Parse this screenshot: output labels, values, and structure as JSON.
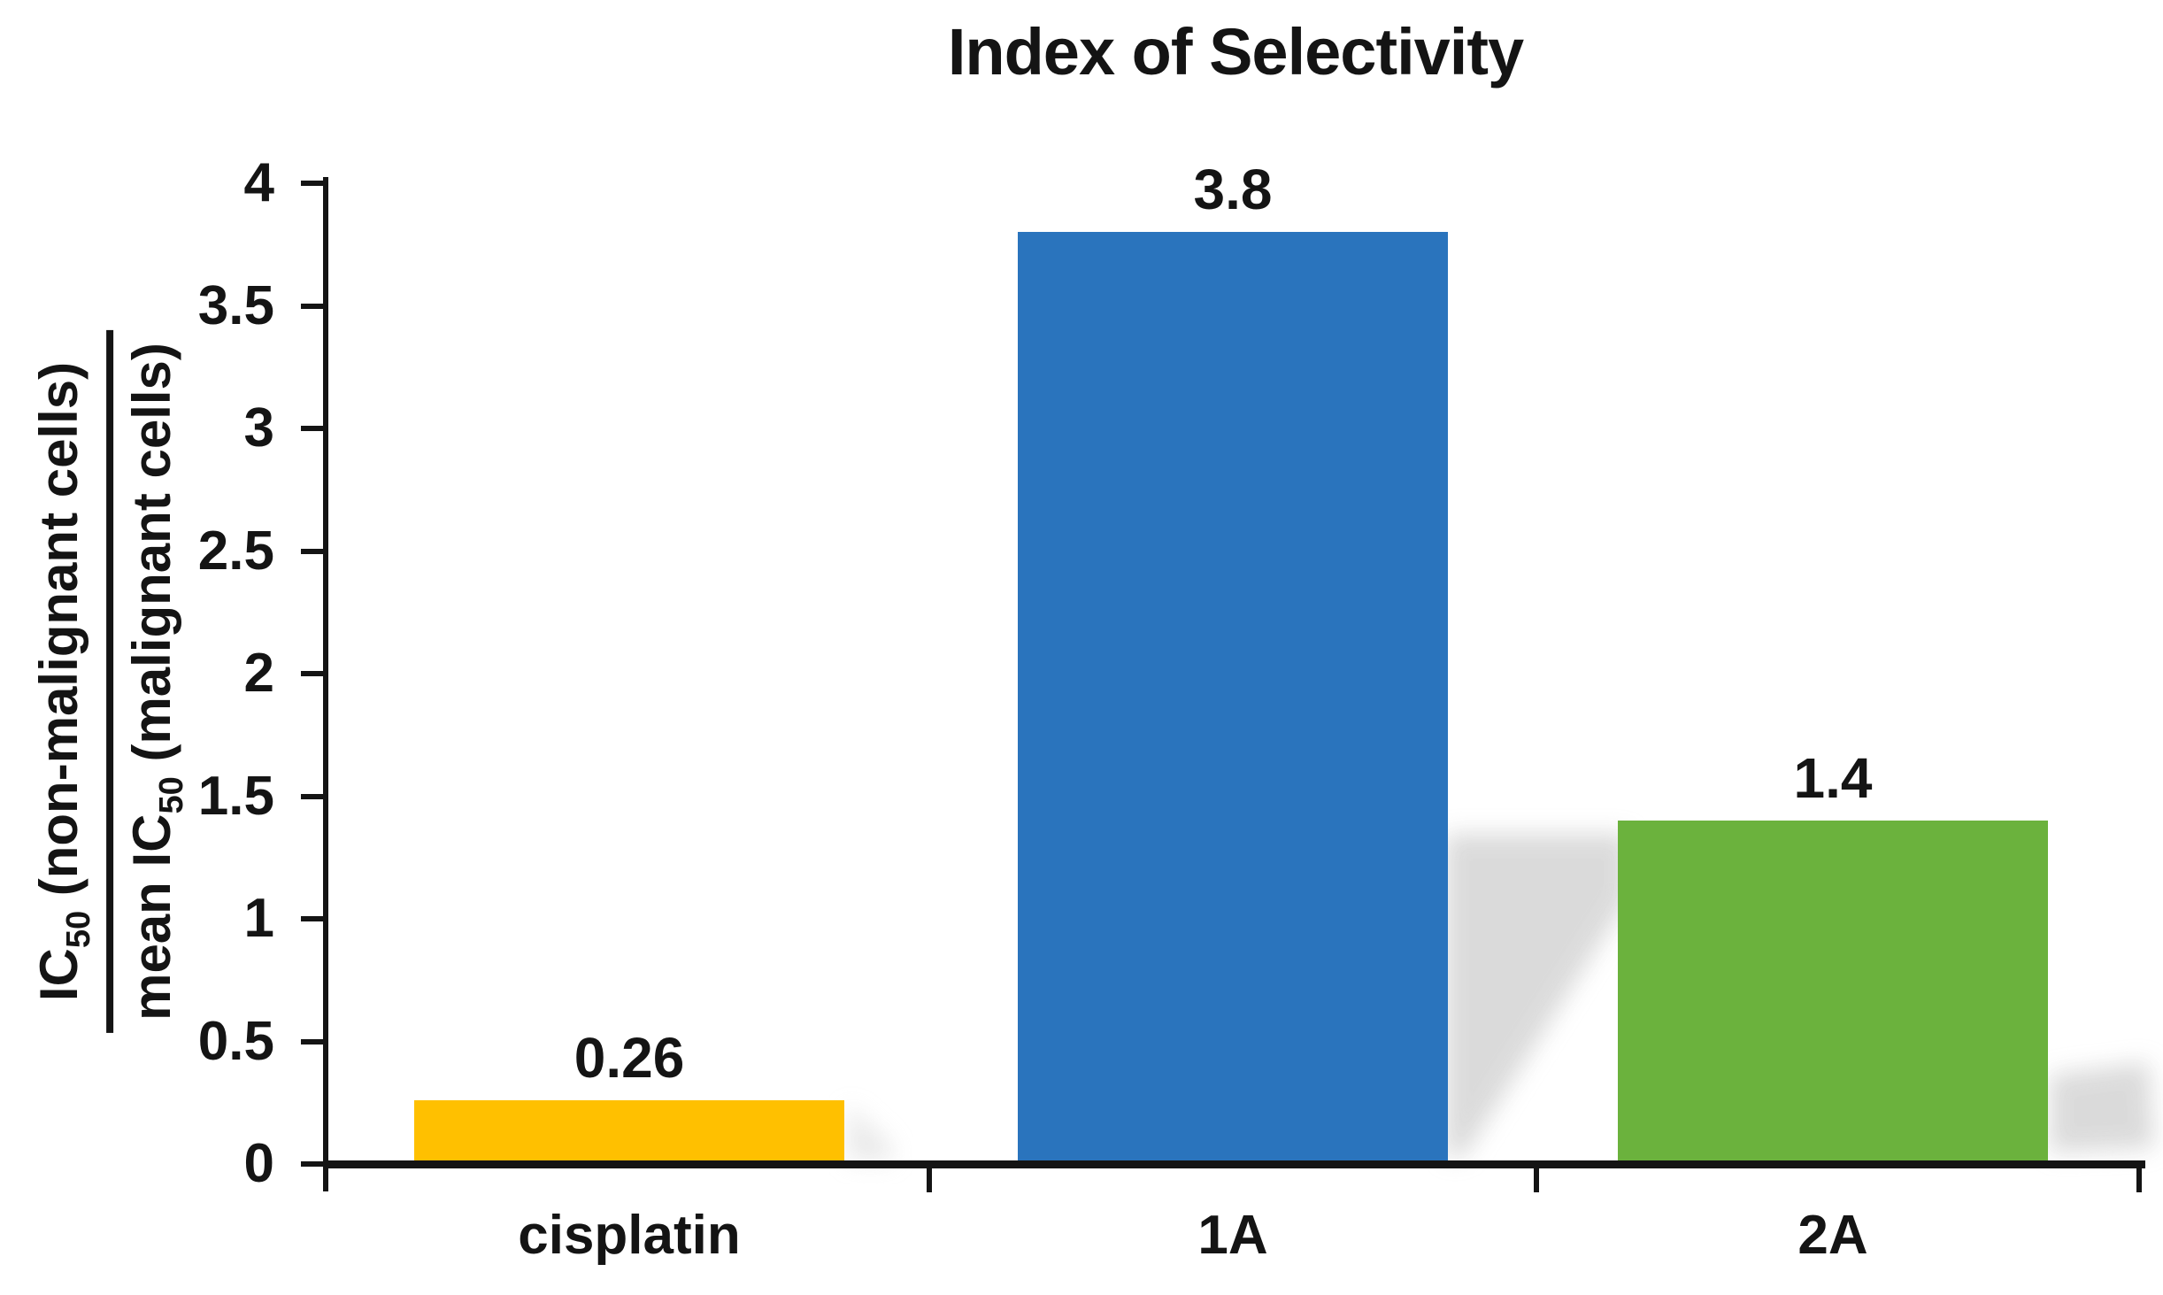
{
  "chart_data": {
    "type": "bar",
    "title": "Index of Selectivity",
    "categories": [
      "cisplatin",
      "1A",
      "2A"
    ],
    "values": [
      0.26,
      3.8,
      1.4
    ],
    "value_labels": [
      "0.26",
      "3.8",
      "1.4"
    ],
    "bar_colors": [
      "#FFC000",
      "#2A74BD",
      "#6BB23D"
    ],
    "ylabel": "IC50 (non-malignant cells) / mean IC50 (malignant cells)",
    "ylabel_fraction": {
      "num_main": "IC",
      "num_sub": "50",
      "num_rest": " (non-malignant cells)",
      "den_main": "mean IC",
      "den_sub": "50",
      "den_rest": " (malignant cells)"
    },
    "xlabel": "",
    "ylim": [
      0,
      4
    ],
    "ytick_step": 0.5,
    "ytick_labels": [
      "4",
      "3.5",
      "3",
      "2.5",
      "2",
      "1.5",
      "1",
      "0.5",
      "0"
    ],
    "grid": false,
    "legend": false,
    "background_color": "#FFFFFF",
    "axis_color": "#141414",
    "text_color": "#141414",
    "shadow_color": "#D9D9D9"
  }
}
